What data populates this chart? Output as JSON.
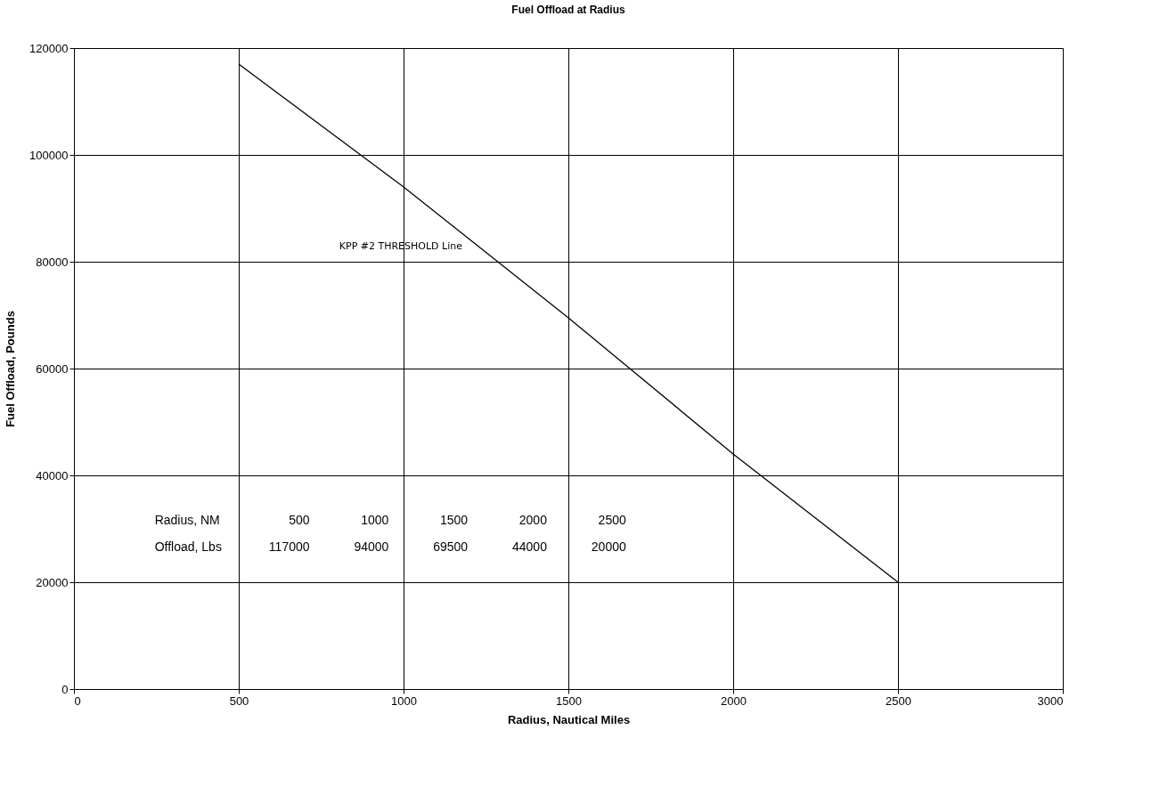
{
  "chart_data": {
    "type": "line",
    "title": "Fuel Offload at Radius",
    "xlabel": "Radius, Nautical Miles",
    "ylabel": "Fuel Offload, Pounds",
    "x": [
      500,
      1000,
      1500,
      2000,
      2500
    ],
    "series": [
      {
        "color": "#000000",
        "values": [
          117000,
          94000,
          69500,
          44000,
          20000
        ]
      }
    ],
    "xlim": [
      0,
      3000
    ],
    "xticks": [
      0,
      500,
      1000,
      1500,
      2000,
      2500,
      3000
    ],
    "ylim": [
      0,
      120000
    ],
    "yticks": [
      0,
      20000,
      40000,
      60000,
      80000,
      100000,
      120000
    ],
    "grid": true,
    "marker": "none",
    "line_style": "solid",
    "annotations": [
      {
        "text": "KPP #2 THRESHOLD Line",
        "x": 1200,
        "y": 84500
      },
      "Radius, NM",
      "500",
      "1000",
      "1500",
      "2000",
      "2500",
      "Offload, Lbs",
      "117000",
      "94000",
      "69500",
      "44000",
      "20000"
    ]
  }
}
